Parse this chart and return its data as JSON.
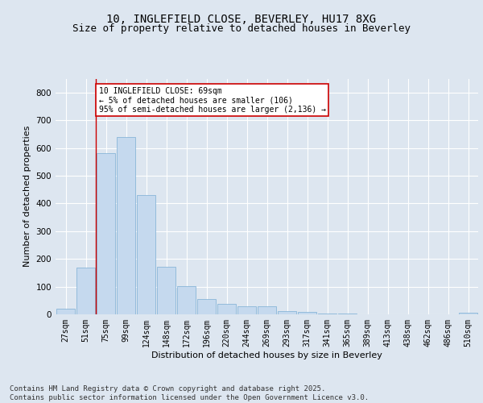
{
  "title1": "10, INGLEFIELD CLOSE, BEVERLEY, HU17 8XG",
  "title2": "Size of property relative to detached houses in Beverley",
  "xlabel": "Distribution of detached houses by size in Beverley",
  "ylabel": "Number of detached properties",
  "categories": [
    "27sqm",
    "51sqm",
    "75sqm",
    "99sqm",
    "124sqm",
    "148sqm",
    "172sqm",
    "196sqm",
    "220sqm",
    "244sqm",
    "269sqm",
    "293sqm",
    "317sqm",
    "341sqm",
    "365sqm",
    "389sqm",
    "413sqm",
    "438sqm",
    "462sqm",
    "486sqm",
    "510sqm"
  ],
  "values": [
    20,
    168,
    580,
    640,
    430,
    172,
    103,
    55,
    38,
    30,
    30,
    13,
    8,
    2,
    2,
    1,
    0,
    0,
    0,
    0,
    5
  ],
  "bar_color": "#c5d9ee",
  "bar_edge_color": "#7aadd4",
  "vline_x": 1.5,
  "vline_color": "#cc0000",
  "annotation_text": "10 INGLEFIELD CLOSE: 69sqm\n← 5% of detached houses are smaller (106)\n95% of semi-detached houses are larger (2,136) →",
  "annotation_box_color": "#ffffff",
  "annotation_box_edge": "#cc0000",
  "ylim": [
    0,
    850
  ],
  "yticks": [
    0,
    100,
    200,
    300,
    400,
    500,
    600,
    700,
    800
  ],
  "background_color": "#dde6f0",
  "plot_bg_color": "#dde6f0",
  "grid_color": "#ffffff",
  "footer": "Contains HM Land Registry data © Crown copyright and database right 2025.\nContains public sector information licensed under the Open Government Licence v3.0.",
  "title_fontsize": 10,
  "subtitle_fontsize": 9,
  "tick_fontsize": 7,
  "ylabel_fontsize": 8,
  "xlabel_fontsize": 8,
  "footer_fontsize": 6.5,
  "annot_fontsize": 7
}
